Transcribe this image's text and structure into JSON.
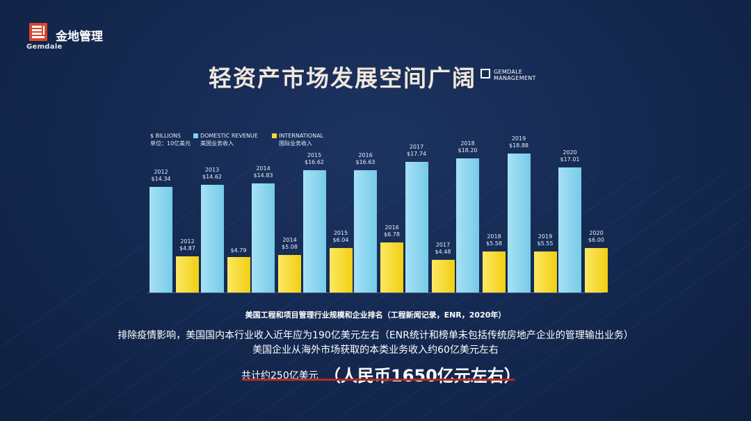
{
  "logo": {
    "name": "金地管理",
    "sub": "Gemdale"
  },
  "slide_title": "轻资产市场发展空间广阔",
  "brand": {
    "line1": "GEMDALE",
    "line2": "MANAGEMENT"
  },
  "legend": {
    "unit_en": "$ BILLIONS",
    "unit_cn": "单位：10亿美元",
    "domestic_en": "DOMESTIC REVENUE",
    "domestic_cn": "美国业务收入",
    "international_en": "INTERNATIONAL",
    "international_cn": "国际业务收入"
  },
  "colors": {
    "domestic": "#7fd1ec",
    "international": "#f7d82e",
    "underline": "#b72d1f",
    "title": "#f1e7dc"
  },
  "chart_data": {
    "type": "bar",
    "categories": [
      "2012",
      "2013",
      "2014",
      "2015",
      "2016",
      "2017",
      "2018",
      "2019",
      "2020"
    ],
    "series": [
      {
        "name": "DOMESTIC REVENUE",
        "values": [
          14.34,
          14.62,
          14.83,
          16.62,
          16.63,
          17.74,
          18.2,
          18.88,
          17.01
        ],
        "labels": [
          "$14.34",
          "$14.62",
          "$14.83",
          "$16.62",
          "$16.63",
          "$17.74",
          "$18.20",
          "$18.88",
          "$17.01"
        ]
      },
      {
        "name": "INTERNATIONAL",
        "values": [
          4.87,
          4.79,
          5.08,
          6.04,
          6.78,
          4.48,
          5.58,
          5.55,
          6.0
        ],
        "labels": [
          "$4.87",
          "$4.79",
          "$5.08",
          "$6.04",
          "$6.78",
          "$4.48",
          "$5.58",
          "$5.55",
          "$6.00"
        ]
      }
    ],
    "intl_year_labels": [
      "2012",
      "",
      "2014",
      "2015",
      "2016",
      "2017",
      "2018",
      "2019",
      "2020"
    ],
    "ylim": [
      0,
      20
    ]
  },
  "source_note": "美国工程和项目管理行业规模和企业排名（工程新闻记录，ENR，2020年）",
  "desc_line1": "排除疫情影响，美国国内本行业收入近年应为190亿美元左右（ENR统计和榜单未包括传统房地产企业的管理输出业务）",
  "desc_line2": "美国企业从海外市场获取的本类业务收入约60亿美元左右",
  "total_small": "共计约250亿美元",
  "total_big": "（人民币1650亿元左右）"
}
